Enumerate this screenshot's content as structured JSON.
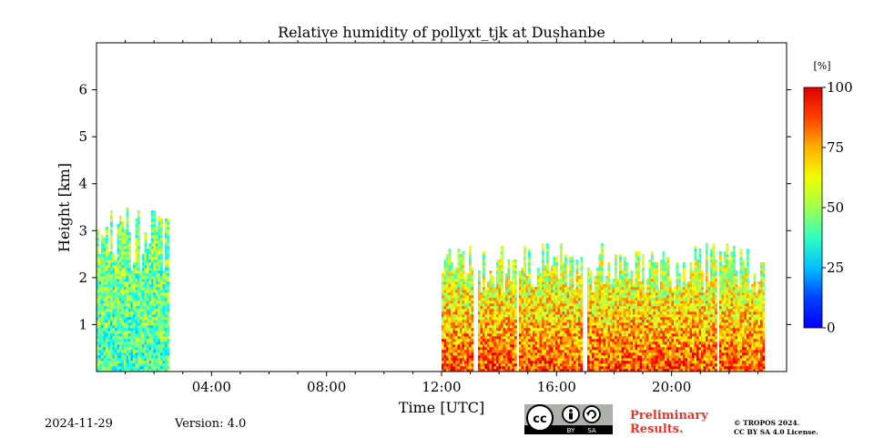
{
  "chart_data": {
    "type": "heatmap",
    "title": "Relative humidity of pollyxt_tjk at Dushanbe",
    "xlabel": "Time [UTC]",
    "ylabel": "Height [km]",
    "x_range_hours": [
      0,
      24
    ],
    "y_range_km": [
      0,
      7
    ],
    "x_ticks": [
      {
        "hour": 4,
        "label": "04:00"
      },
      {
        "hour": 8,
        "label": "08:00"
      },
      {
        "hour": 12,
        "label": "12:00"
      },
      {
        "hour": 16,
        "label": "16:00"
      },
      {
        "hour": 20,
        "label": "20:00"
      }
    ],
    "y_ticks": [
      {
        "km": 1,
        "label": "1"
      },
      {
        "km": 2,
        "label": "2"
      },
      {
        "km": 3,
        "label": "3"
      },
      {
        "km": 4,
        "label": "4"
      },
      {
        "km": 5,
        "label": "5"
      },
      {
        "km": 6,
        "label": "6"
      }
    ],
    "colorbar": {
      "unit_label": "[%]",
      "range": [
        0,
        100
      ],
      "ticks": [
        {
          "value": 0,
          "label": "0"
        },
        {
          "value": 25,
          "label": "25"
        },
        {
          "value": 50,
          "label": "50"
        },
        {
          "value": 75,
          "label": "75"
        },
        {
          "value": 100,
          "label": "100"
        }
      ],
      "colormap": "jet"
    },
    "data_segments": [
      {
        "start_hour": 0.0,
        "end_hour": 2.5,
        "top_km": 2.8,
        "rh_at_bottom": 45,
        "rh_at_top": 50
      },
      {
        "start_hour": 12.0,
        "end_hour": 23.2,
        "top_km": 2.2,
        "rh_at_bottom": 80,
        "rh_at_top": 55
      }
    ],
    "data_gaps_hours": [
      [
        13.05,
        13.2
      ],
      [
        14.55,
        14.65
      ],
      [
        16.9,
        17.0
      ],
      [
        21.5,
        21.6
      ]
    ]
  },
  "footer": {
    "date": "2024-11-29",
    "version": "Version: 4.0",
    "cc_badge": {
      "cc": "cc",
      "by": "BY",
      "sa": "SA"
    },
    "preliminary_line1": "Preliminary",
    "preliminary_line2": "Results.",
    "copyright_line1": "© TROPOS 2024.",
    "copyright_line2": "CC BY SA 4.0 License."
  }
}
